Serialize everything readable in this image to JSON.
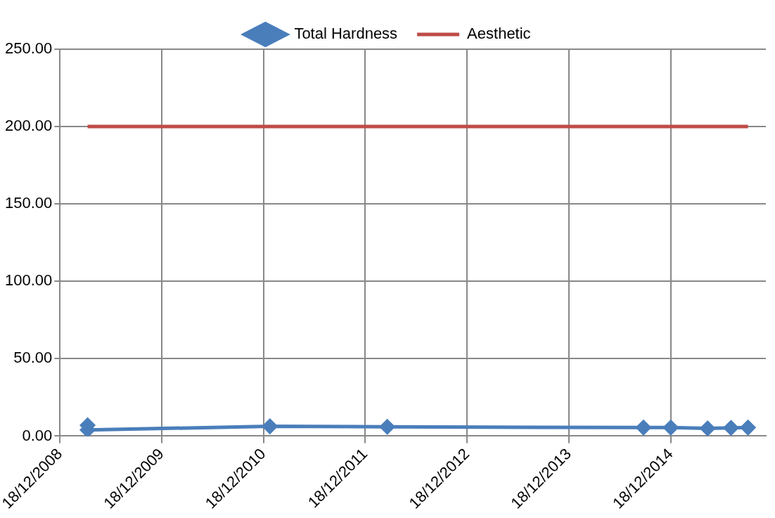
{
  "chart_data": {
    "type": "line",
    "x": [
      "2009-03-27",
      "2009-03-27",
      "2011-01-10",
      "2012-03-06",
      "2014-09-11",
      "2014-12-18",
      "2015-04-29",
      "2015-07-22",
      "2015-09-21"
    ],
    "series": [
      {
        "name": "Total Hardness",
        "color": "#4a7ebb",
        "marker": "diamond",
        "values": [
          7,
          4,
          6.3,
          6,
          5.5,
          5.5,
          5,
          5.3,
          5.5
        ]
      },
      {
        "name": "Aesthetic",
        "color": "#be4b48",
        "marker": "none",
        "x": [
          "2009-03-27",
          "2015-09-21"
        ],
        "values": [
          200,
          200
        ]
      }
    ],
    "xlim": [
      "2008-12-18",
      "2015-11-24"
    ],
    "xticks": [
      {
        "value": "2008-12-18",
        "label": "18/12/2008"
      },
      {
        "value": "2009-12-18",
        "label": "18/12/2009"
      },
      {
        "value": "2010-12-18",
        "label": "18/12/2010"
      },
      {
        "value": "2011-12-18",
        "label": "18/12/2011"
      },
      {
        "value": "2012-12-18",
        "label": "18/12/2012"
      },
      {
        "value": "2013-12-18",
        "label": "18/12/2013"
      },
      {
        "value": "2014-12-18",
        "label": "18/12/2014"
      }
    ],
    "ylim": [
      0,
      250
    ],
    "yticks": [
      {
        "value": 0,
        "label": "0.00"
      },
      {
        "value": 50,
        "label": "50.00"
      },
      {
        "value": 100,
        "label": "100.00"
      },
      {
        "value": 150,
        "label": "150.00"
      },
      {
        "value": 200,
        "label": "200.00"
      },
      {
        "value": 250,
        "label": "250.00"
      }
    ],
    "grid": true,
    "legend": "top",
    "line_style": "solid"
  }
}
